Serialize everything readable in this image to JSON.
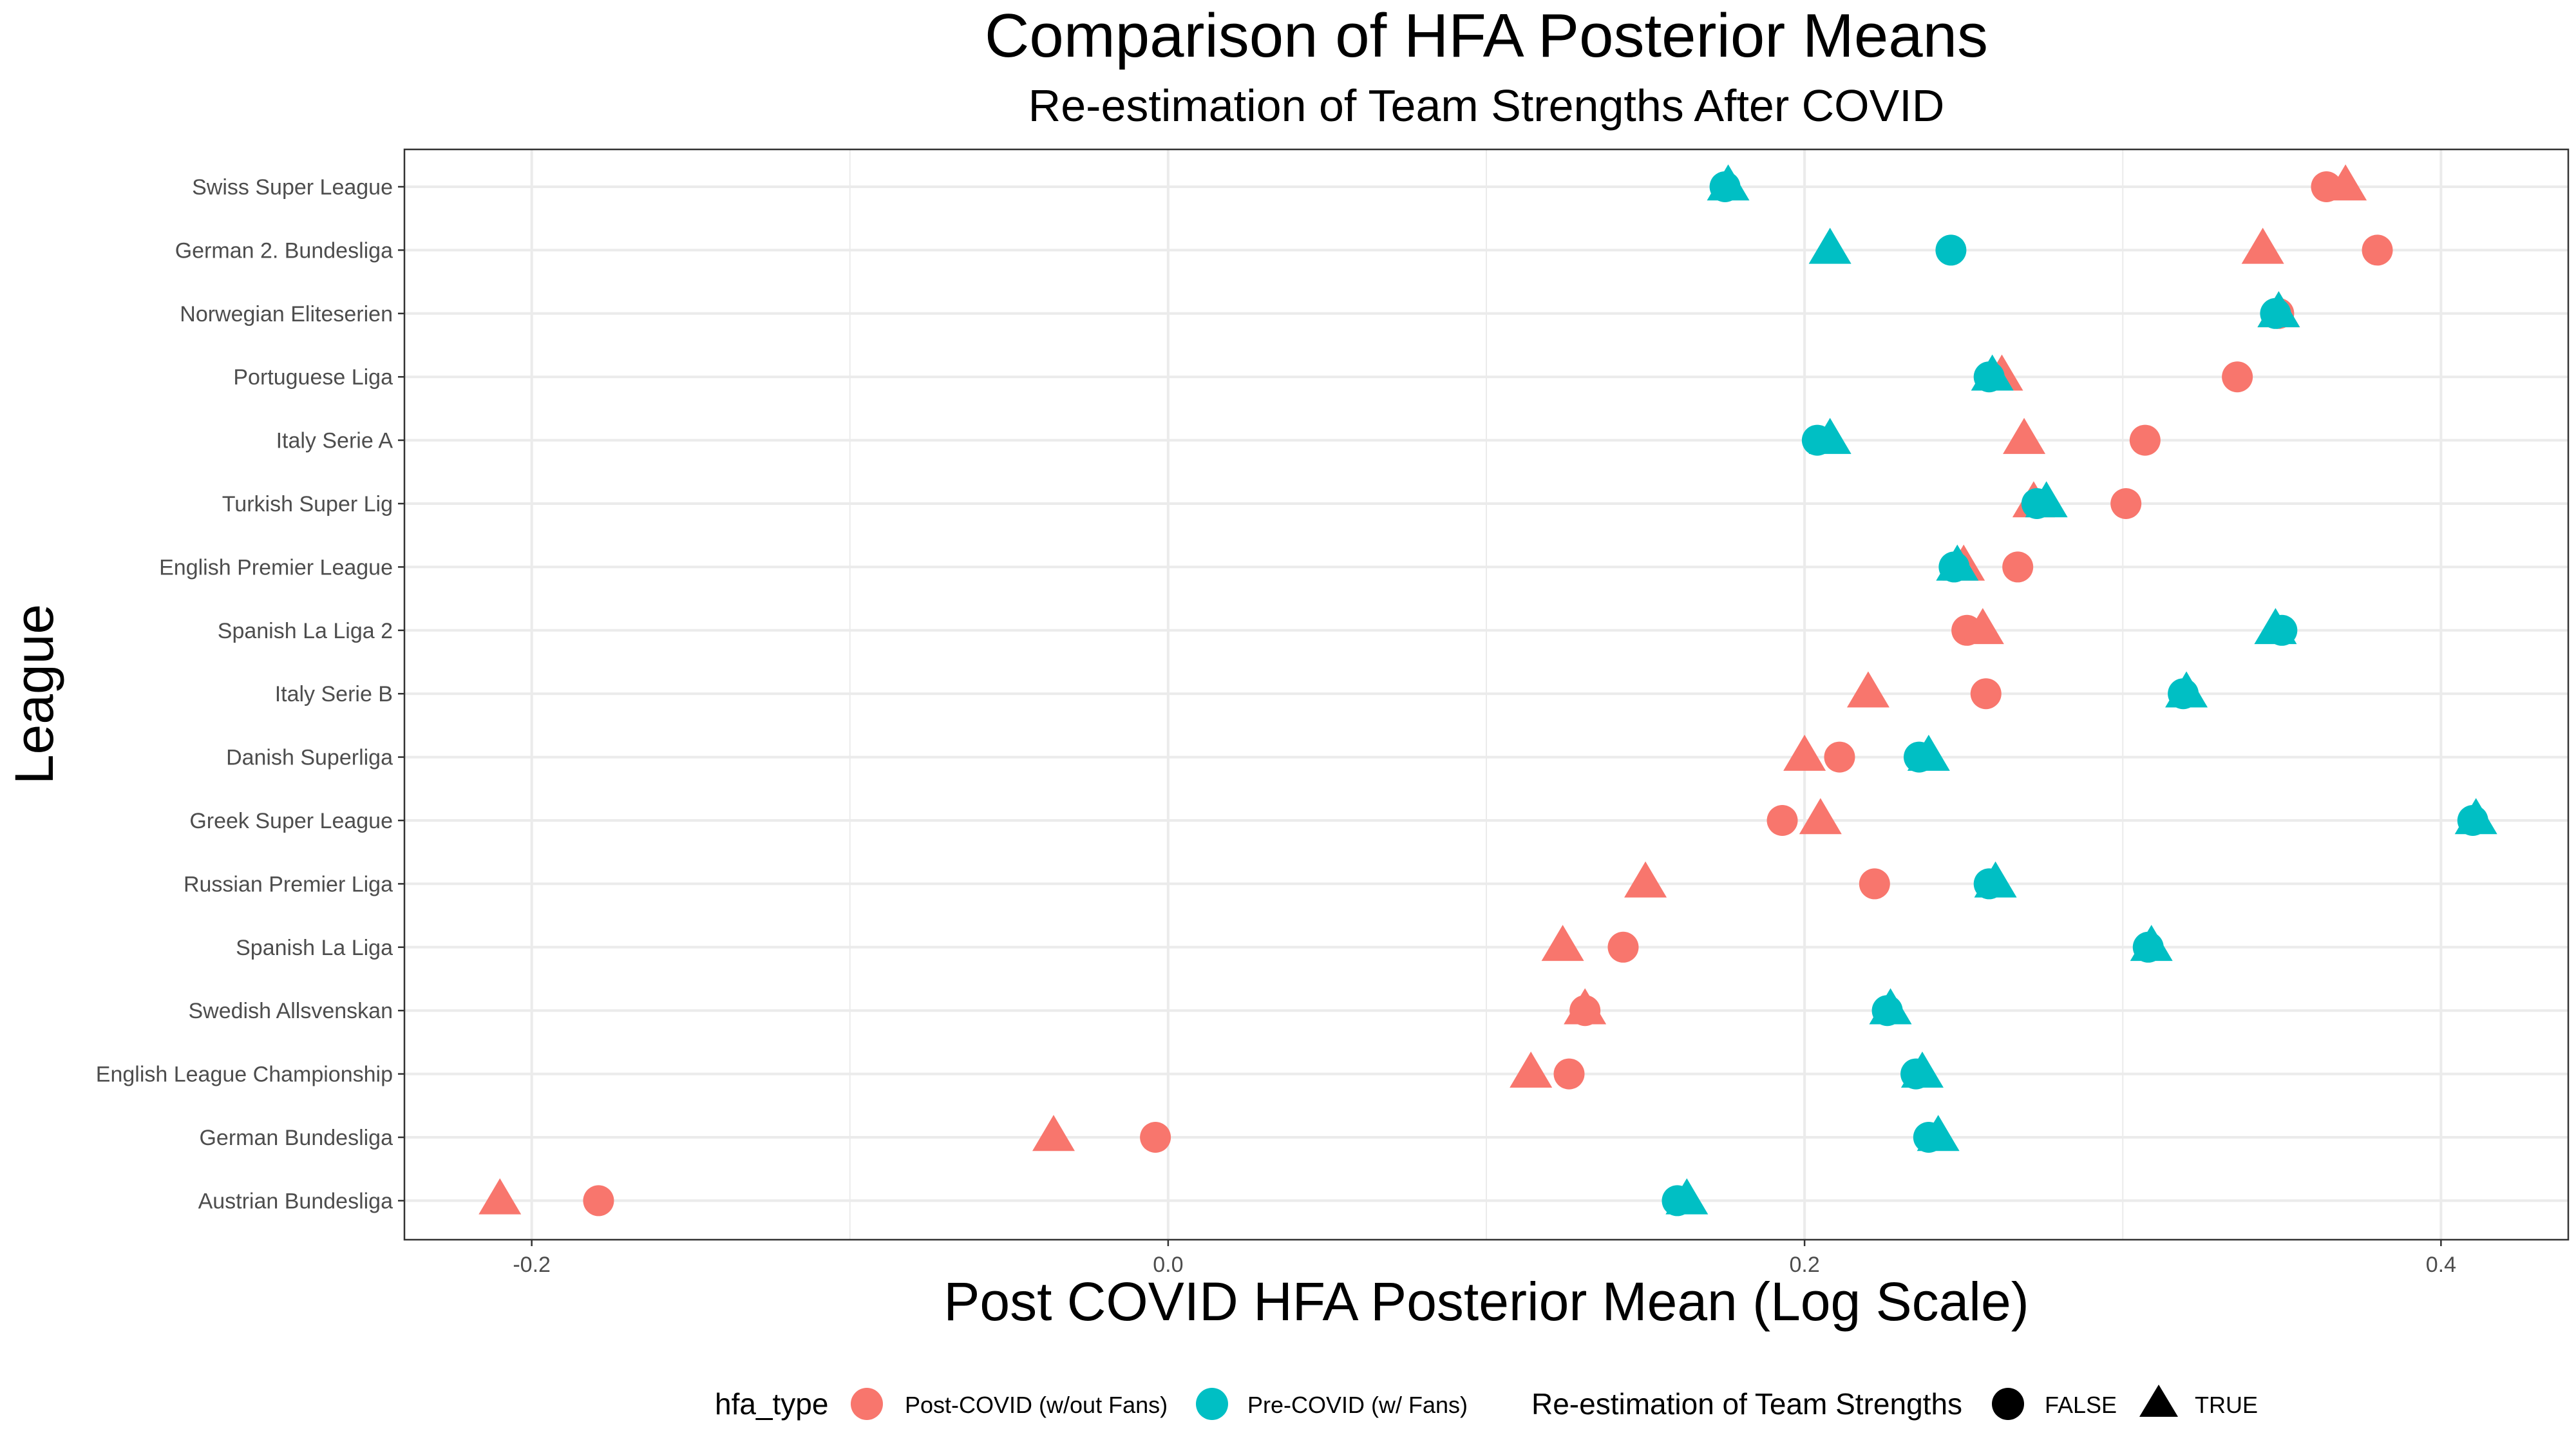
{
  "chart_data": {
    "type": "scatter",
    "title": "Comparison of HFA Posterior Means",
    "subtitle": "Re-estimation of Team Strengths After COVID",
    "xlabel": "Post COVID HFA Posterior Mean (Log Scale)",
    "ylabel": "League",
    "xlim": [
      -0.24,
      0.44
    ],
    "xticks": [
      -0.2,
      0.0,
      0.2,
      0.4
    ],
    "xtick_labels": [
      "-0.2",
      "0.0",
      "0.2",
      "0.4"
    ],
    "grid": true,
    "leagues": [
      "Swiss Super League",
      "German 2. Bundesliga",
      "Norwegian Eliteserien",
      "Portuguese Liga",
      "Italy Serie A",
      "Turkish Super Lig",
      "English Premier League",
      "Spanish La Liga 2",
      "Italy Serie B",
      "Danish Superliga",
      "Greek Super League",
      "Russian Premier Liga",
      "Spanish La Liga",
      "Swedish Allsvenskan",
      "English League Championship",
      "German Bundesliga",
      "Austrian Bundesliga"
    ],
    "colors": {
      "post": "#F8766D",
      "pre": "#00BFC4"
    },
    "series": [
      {
        "name": "Post-COVID (w/out Fans)",
        "color_key": "post",
        "reestimated": "FALSE",
        "shape": "circle",
        "values": [
          0.364,
          0.38,
          0.349,
          0.336,
          0.307,
          0.301,
          0.267,
          0.251,
          0.257,
          0.211,
          0.193,
          0.222,
          0.143,
          0.131,
          0.126,
          -0.004,
          -0.179
        ]
      },
      {
        "name": "Post-COVID (w/out Fans)",
        "color_key": "post",
        "reestimated": "TRUE",
        "shape": "triangle",
        "values": [
          0.37,
          0.344,
          0.349,
          0.262,
          0.269,
          0.272,
          0.25,
          0.256,
          0.22,
          0.2,
          0.205,
          0.15,
          0.124,
          0.131,
          0.114,
          -0.036,
          -0.21
        ]
      },
      {
        "name": "Pre-COVID (w/ Fans)",
        "color_key": "pre",
        "reestimated": "FALSE",
        "shape": "circle",
        "values": [
          0.175,
          0.246,
          0.348,
          0.258,
          0.204,
          0.273,
          0.247,
          0.35,
          0.319,
          0.236,
          0.41,
          0.258,
          0.308,
          0.226,
          0.235,
          0.239,
          0.16
        ]
      },
      {
        "name": "Pre-COVID (w/ Fans)",
        "color_key": "pre",
        "reestimated": "TRUE",
        "shape": "triangle",
        "values": [
          0.176,
          0.208,
          0.349,
          0.259,
          0.208,
          0.276,
          0.248,
          0.348,
          0.32,
          0.239,
          0.411,
          0.26,
          0.309,
          0.227,
          0.237,
          0.242,
          0.163
        ]
      }
    ],
    "legend": {
      "position": "bottom",
      "color_title": "hfa_type",
      "color_items": [
        {
          "label": "Post-COVID (w/out Fans)",
          "color_key": "post"
        },
        {
          "label": "Pre-COVID (w/ Fans)",
          "color_key": "pre"
        }
      ],
      "shape_title": "Re-estimation of Team Strengths",
      "shape_items": [
        {
          "label": "FALSE",
          "shape": "circle"
        },
        {
          "label": "TRUE",
          "shape": "triangle"
        }
      ]
    }
  }
}
